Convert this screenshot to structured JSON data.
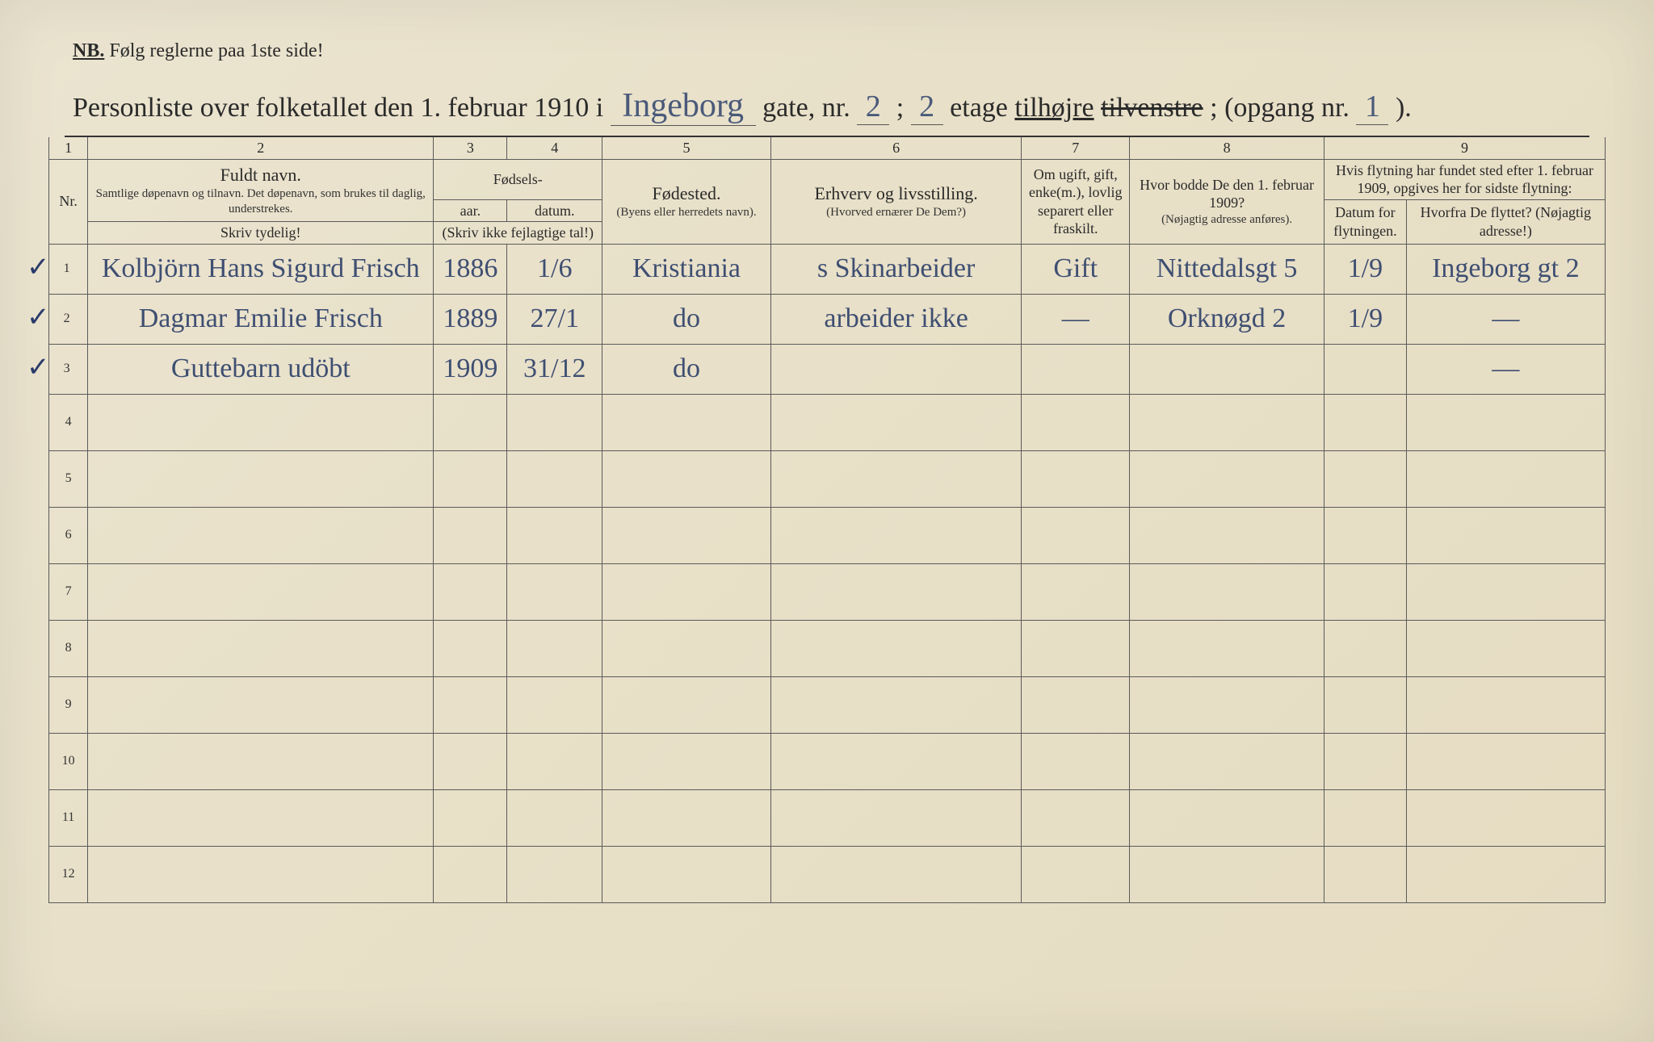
{
  "header": {
    "nb_prefix": "NB.",
    "nb_text": "Følg reglerne paa 1ste side!",
    "title_prefix": "Personliste over folketallet den 1. februar 1910 i",
    "street": "Ingeborg",
    "gate_label": "gate, nr.",
    "gate_nr": "2",
    "sep1": ";",
    "etage_nr": "2",
    "etage_label": "etage",
    "tilhojre": "tilhøjre",
    "tilvenstre": "tilvenstre",
    "sep2": "; (opgang nr.",
    "opgang_nr": "1",
    "close": ")."
  },
  "columns": {
    "n1": "1",
    "n2": "2",
    "n3": "3",
    "n4": "4",
    "n5": "5",
    "n6": "6",
    "n7": "7",
    "n8": "8",
    "n9": "9",
    "nr": "Nr.",
    "fuldt_navn": "Fuldt navn.",
    "fuldt_sub": "Samtlige døpenavn og tilnavn. Det døpenavn, som brukes til daglig, understrekes.",
    "skriv_tydelig": "Skriv tydelig!",
    "fodsels": "Fødsels-",
    "aar": "aar.",
    "datum": "datum.",
    "skriv_ikke": "(Skriv ikke fejlagtige tal!)",
    "fodested": "Fødested.",
    "fodested_sub": "(Byens eller herre­dets navn).",
    "erhverv": "Erhverv og livsstilling.",
    "erhverv_sub": "(Hvorved ernærer De Dem?)",
    "omugift": "Om ugift, gift, enke(m.), lovlig separert eller fraskilt.",
    "hvorbodde": "Hvor bodde De den 1. februar 1909?",
    "hvorbodde_sub": "(Nøjagtig adresse anføres).",
    "hvis": "Hvis flytning har fundet sted efter 1. februar 1909, opgives her for sidste flytning:",
    "datum_flyt": "Datum for flyt­ningen.",
    "hvorfra": "Hvorfra De flyttet? (Nøjagtig adresse!)"
  },
  "rows": [
    {
      "nr": "1",
      "check": "✓",
      "navn": "Kolbjörn Hans Sigurd Frisch",
      "aar": "1886",
      "datum": "1/6",
      "fodested": "Kristiania",
      "erhverv": "s Skinarbeider",
      "status": "Gift",
      "bodde": "Nittedalsgt 5",
      "flyt_dat": "1/9",
      "hvorfra": "Ingeborg gt 2"
    },
    {
      "nr": "2",
      "check": "✓",
      "navn": "Dagmar Emilie Frisch",
      "aar": "1889",
      "datum": "27/1",
      "fodested": "do",
      "erhverv": "arbeider ikke",
      "status": "—",
      "bodde": "Orknøgd 2",
      "flyt_dat": "1/9",
      "hvorfra": "—"
    },
    {
      "nr": "3",
      "check": "✓",
      "navn": "Guttebarn udöbt",
      "aar": "1909",
      "datum": "31/12",
      "fodested": "do",
      "erhverv": "",
      "status": "",
      "bodde": "",
      "flyt_dat": "",
      "hvorfra": "—"
    }
  ],
  "empty_rows": [
    "4",
    "5",
    "6",
    "7",
    "8",
    "9",
    "10",
    "11",
    "12"
  ],
  "colors": {
    "paper": "#e8e0c8",
    "ink_print": "#2a2a2a",
    "ink_hand": "#3f4f72",
    "rule": "#5a5a5a"
  }
}
